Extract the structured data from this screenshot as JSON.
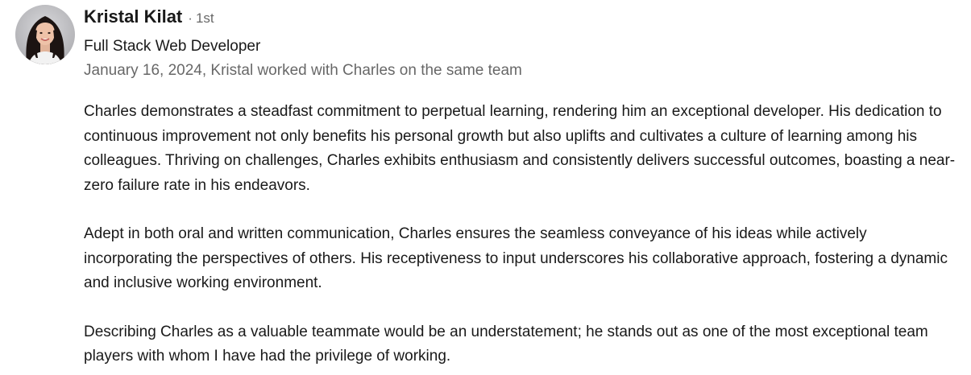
{
  "recommender": {
    "name": "Kristal Kilat",
    "degree_separator": "·",
    "degree": "1st",
    "headline": "Full Stack Web Developer",
    "relationship": "January 16, 2024, Kristal worked with Charles on the same team"
  },
  "recommendation": {
    "paragraphs": [
      "Charles demonstrates a steadfast commitment to perpetual learning, rendering him an exceptional developer. His dedication to continuous improvement not only benefits his personal growth but also uplifts and cultivates a culture of learning among his colleagues. Thriving on challenges, Charles exhibits enthusiasm and consistently delivers successful outcomes, boasting a near-zero failure rate in his endeavors.",
      "Adept in both oral and written communication, Charles ensures the seamless conveyance of his ideas while actively incorporating the perspectives of others. His receptiveness to input underscores his collaborative approach, fostering a dynamic and inclusive working environment.",
      "Describing Charles as a valuable teammate would be an understatement; he stands out as one of the most exceptional team players with whom I have had the privilege of working."
    ]
  },
  "colors": {
    "primary_text": "#191919",
    "secondary_text": "#666666",
    "background": "#ffffff"
  }
}
